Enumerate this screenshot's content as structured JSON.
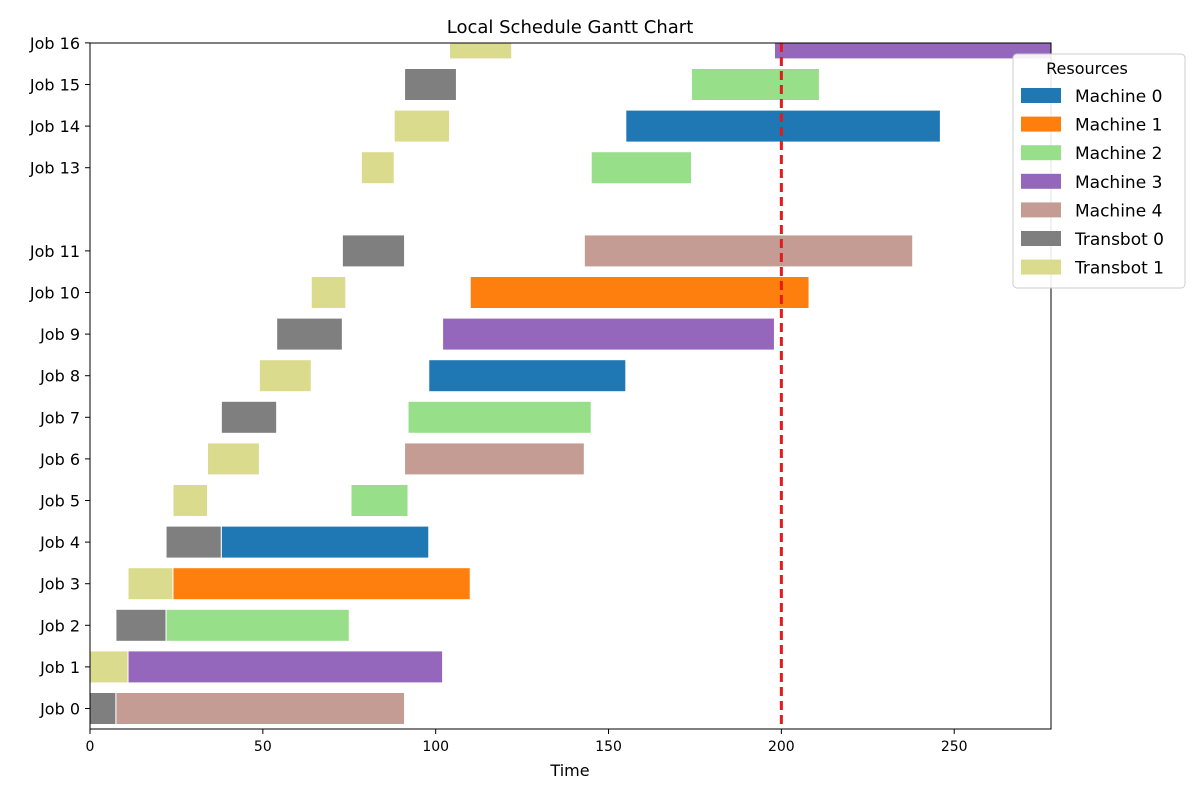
{
  "chart_data": {
    "type": "gantt",
    "title": "Local Schedule Gantt Chart",
    "xlabel": "Time",
    "ylabel": "",
    "xlim": [
      0,
      278
    ],
    "xticks": [
      0,
      50,
      100,
      150,
      200,
      250
    ],
    "jobs": [
      "Job 0",
      "Job 1",
      "Job 2",
      "Job 3",
      "Job 4",
      "Job 5",
      "Job 6",
      "Job 7",
      "Job 8",
      "Job 9",
      "Job 10",
      "Job 11",
      "Job 13",
      "Job 14",
      "Job 15",
      "Job 16"
    ],
    "job_rows": [
      0,
      1,
      2,
      3,
      4,
      5,
      6,
      7,
      8,
      9,
      10,
      11,
      13,
      14,
      15,
      16
    ],
    "current_time": 200,
    "legend": {
      "title": "Resources",
      "position": "top-right",
      "items": [
        {
          "name": "Machine 0",
          "color": "#1f77b4"
        },
        {
          "name": "Machine 1",
          "color": "#ff7f0e"
        },
        {
          "name": "Machine 2",
          "color": "#98df8a"
        },
        {
          "name": "Machine 3",
          "color": "#9467bd"
        },
        {
          "name": "Machine 4",
          "color": "#c49c94"
        },
        {
          "name": "Transbot 0",
          "color": "#7f7f7f"
        },
        {
          "name": "Transbot 1",
          "color": "#dbdb8d"
        }
      ]
    },
    "tasks": [
      {
        "job": 0,
        "resource": "Transbot 0",
        "start": 0,
        "end": 7.5
      },
      {
        "job": 0,
        "resource": "Machine 4",
        "start": 7.5,
        "end": 91
      },
      {
        "job": 1,
        "resource": "Transbot 1",
        "start": 0,
        "end": 11
      },
      {
        "job": 1,
        "resource": "Machine 3",
        "start": 11,
        "end": 102
      },
      {
        "job": 2,
        "resource": "Transbot 0",
        "start": 7.5,
        "end": 22
      },
      {
        "job": 2,
        "resource": "Machine 2",
        "start": 22,
        "end": 75
      },
      {
        "job": 3,
        "resource": "Transbot 1",
        "start": 11,
        "end": 24
      },
      {
        "job": 3,
        "resource": "Machine 1",
        "start": 24,
        "end": 110
      },
      {
        "job": 4,
        "resource": "Transbot 0",
        "start": 22,
        "end": 38
      },
      {
        "job": 4,
        "resource": "Machine 0",
        "start": 38,
        "end": 98
      },
      {
        "job": 5,
        "resource": "Transbot 1",
        "start": 24,
        "end": 34
      },
      {
        "job": 5,
        "resource": "Machine 2",
        "start": 75.5,
        "end": 92
      },
      {
        "job": 6,
        "resource": "Transbot 1",
        "start": 34,
        "end": 49
      },
      {
        "job": 6,
        "resource": "Machine 4",
        "start": 91,
        "end": 143
      },
      {
        "job": 7,
        "resource": "Transbot 0",
        "start": 38,
        "end": 54
      },
      {
        "job": 7,
        "resource": "Machine 2",
        "start": 92,
        "end": 145
      },
      {
        "job": 8,
        "resource": "Transbot 1",
        "start": 49,
        "end": 64
      },
      {
        "job": 8,
        "resource": "Machine 0",
        "start": 98,
        "end": 155
      },
      {
        "job": 9,
        "resource": "Transbot 0",
        "start": 54,
        "end": 73
      },
      {
        "job": 9,
        "resource": "Machine 3",
        "start": 102,
        "end": 198
      },
      {
        "job": 10,
        "resource": "Transbot 1",
        "start": 64,
        "end": 74
      },
      {
        "job": 10,
        "resource": "Machine 1",
        "start": 110,
        "end": 208
      },
      {
        "job": 11,
        "resource": "Transbot 0",
        "start": 73,
        "end": 91
      },
      {
        "job": 11,
        "resource": "Machine 4",
        "start": 143,
        "end": 238
      },
      {
        "job": 13,
        "resource": "Transbot 1",
        "start": 78.5,
        "end": 88
      },
      {
        "job": 13,
        "resource": "Machine 2",
        "start": 145,
        "end": 174
      },
      {
        "job": 14,
        "resource": "Transbot 1",
        "start": 88,
        "end": 104
      },
      {
        "job": 14,
        "resource": "Machine 0",
        "start": 155,
        "end": 246
      },
      {
        "job": 15,
        "resource": "Transbot 0",
        "start": 91,
        "end": 106
      },
      {
        "job": 15,
        "resource": "Machine 2",
        "start": 174,
        "end": 211
      },
      {
        "job": 16,
        "resource": "Transbot 1",
        "start": 104,
        "end": 122
      },
      {
        "job": 16,
        "resource": "Machine 3",
        "start": 198,
        "end": 278
      }
    ]
  }
}
